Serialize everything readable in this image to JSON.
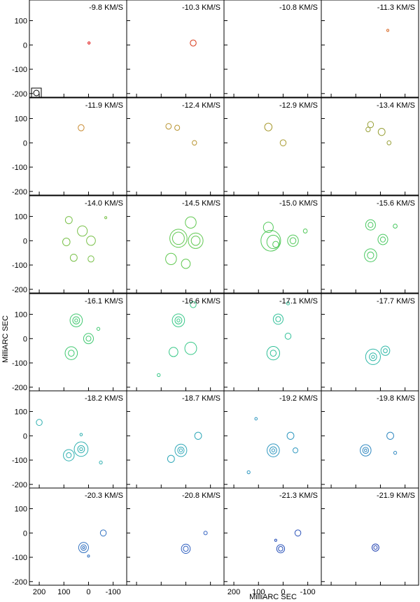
{
  "chart_data": {
    "type": "contour-channel-map",
    "xlabel": "MilliARC SEC",
    "ylabel": "MilliARC SEC",
    "xticks": [
      200,
      100,
      0,
      -100
    ],
    "yticks": [
      100,
      0,
      -100,
      -200
    ],
    "xlim": [
      240,
      -155
    ],
    "ylim": [
      -215,
      185
    ],
    "channels": [
      {
        "label": "-9.8 KM/S",
        "color": "#e01010",
        "features": [
          {
            "x": -2,
            "y": 8,
            "r": 2
          }
        ]
      },
      {
        "label": "-10.3 KM/S",
        "color": "#d83818",
        "features": [
          {
            "x": -30,
            "y": 8,
            "r": 12
          }
        ]
      },
      {
        "label": "-10.8 KM/S",
        "color": "#d85a20",
        "features": []
      },
      {
        "label": "-11.3 KM/S",
        "color": "#d86a28",
        "features": [
          {
            "x": -30,
            "y": 60,
            "r": 4
          }
        ]
      },
      {
        "label": "-11.9 KM/S",
        "color": "#c88a30",
        "features": [
          {
            "x": 30,
            "y": 62,
            "r": 12
          }
        ]
      },
      {
        "label": "-12.4 KM/S",
        "color": "#b89430",
        "features": [
          {
            "x": 70,
            "y": 68,
            "r": 11
          },
          {
            "x": 35,
            "y": 62,
            "r": 10
          },
          {
            "x": -35,
            "y": 0,
            "r": 9
          }
        ]
      },
      {
        "label": "-12.9 KM/S",
        "color": "#a89a30",
        "features": [
          {
            "x": 60,
            "y": 65,
            "r": 15
          },
          {
            "x": 0,
            "y": 0,
            "r": 12
          }
        ]
      },
      {
        "label": "-13.4 KM/S",
        "color": "#98a038",
        "features": [
          {
            "x": 40,
            "y": 75,
            "r": 12
          },
          {
            "x": 50,
            "y": 55,
            "r": 9
          },
          {
            "x": -5,
            "y": 45,
            "r": 14
          },
          {
            "x": -35,
            "y": 0,
            "r": 8
          }
        ]
      },
      {
        "label": "-14.0 KM/S",
        "color": "#78c048",
        "features": [
          {
            "x": 80,
            "y": 85,
            "r": 14
          },
          {
            "x": 25,
            "y": 40,
            "r": 20
          },
          {
            "x": 90,
            "y": -5,
            "r": 15
          },
          {
            "x": -10,
            "y": 0,
            "r": 18
          },
          {
            "x": 60,
            "y": -70,
            "r": 14
          },
          {
            "x": -10,
            "y": -75,
            "r": 12
          },
          {
            "x": -70,
            "y": 95,
            "r": 4
          }
        ]
      },
      {
        "label": "-14.5 KM/S",
        "color": "#60c850",
        "features": [
          {
            "x": 30,
            "y": 10,
            "r": 35
          },
          {
            "x": 30,
            "y": 10,
            "r": 24
          },
          {
            "x": -40,
            "y": 0,
            "r": 30
          },
          {
            "x": -40,
            "y": 0,
            "r": 18
          },
          {
            "x": 60,
            "y": -75,
            "r": 22
          },
          {
            "x": 0,
            "y": -95,
            "r": 18
          },
          {
            "x": -20,
            "y": 75,
            "r": 22
          }
        ]
      },
      {
        "label": "-15.0 KM/S",
        "color": "#50c858",
        "features": [
          {
            "x": 50,
            "y": 0,
            "r": 40
          },
          {
            "x": 40,
            "y": -5,
            "r": 26
          },
          {
            "x": 30,
            "y": -15,
            "r": 12
          },
          {
            "x": -40,
            "y": 0,
            "r": 22
          },
          {
            "x": -40,
            "y": 0,
            "r": 12
          },
          {
            "x": 60,
            "y": 55,
            "r": 20
          },
          {
            "x": -90,
            "y": 40,
            "r": 8
          }
        ]
      },
      {
        "label": "-15.6 KM/S",
        "color": "#48c860",
        "features": [
          {
            "x": 40,
            "y": 65,
            "r": 20
          },
          {
            "x": 40,
            "y": 65,
            "r": 10
          },
          {
            "x": -10,
            "y": 5,
            "r": 20
          },
          {
            "x": -10,
            "y": 5,
            "r": 10
          },
          {
            "x": 40,
            "y": -60,
            "r": 25
          },
          {
            "x": 40,
            "y": -60,
            "r": 13
          },
          {
            "x": -60,
            "y": 60,
            "r": 8
          }
        ]
      },
      {
        "label": "-16.1 KM/S",
        "color": "#40c870",
        "features": [
          {
            "x": 50,
            "y": 75,
            "r": 25
          },
          {
            "x": 50,
            "y": 75,
            "r": 14
          },
          {
            "x": 50,
            "y": 75,
            "r": 6
          },
          {
            "x": 0,
            "y": 0,
            "r": 20
          },
          {
            "x": 0,
            "y": 0,
            "r": 10
          },
          {
            "x": 70,
            "y": -60,
            "r": 25
          },
          {
            "x": 70,
            "y": -60,
            "r": 12
          },
          {
            "x": -40,
            "y": 40,
            "r": 6
          }
        ]
      },
      {
        "label": "-16.6 KM/S",
        "color": "#38c888",
        "features": [
          {
            "x": 30,
            "y": 75,
            "r": 25
          },
          {
            "x": 30,
            "y": 75,
            "r": 14
          },
          {
            "x": 30,
            "y": 75,
            "r": 6
          },
          {
            "x": -30,
            "y": 140,
            "r": 12
          },
          {
            "x": -20,
            "y": -40,
            "r": 24
          },
          {
            "x": 50,
            "y": -55,
            "r": 18
          },
          {
            "x": 110,
            "y": -150,
            "r": 6
          }
        ]
      },
      {
        "label": "-17.1 KM/S",
        "color": "#30c098",
        "features": [
          {
            "x": 20,
            "y": 80,
            "r": 20
          },
          {
            "x": 20,
            "y": 80,
            "r": 10
          },
          {
            "x": 40,
            "y": -60,
            "r": 26
          },
          {
            "x": 40,
            "y": -60,
            "r": 12
          },
          {
            "x": -20,
            "y": 10,
            "r": 12
          },
          {
            "x": -20,
            "y": 145,
            "r": 6
          }
        ]
      },
      {
        "label": "-17.7 KM/S",
        "color": "#30b8a8",
        "features": [
          {
            "x": 30,
            "y": -75,
            "r": 30
          },
          {
            "x": 30,
            "y": -75,
            "r": 15
          },
          {
            "x": 30,
            "y": -75,
            "r": 6
          },
          {
            "x": -20,
            "y": -50,
            "r": 18
          },
          {
            "x": -20,
            "y": -50,
            "r": 8
          }
        ]
      },
      {
        "label": "-18.2 KM/S",
        "color": "#30b0b0",
        "features": [
          {
            "x": 80,
            "y": -80,
            "r": 22
          },
          {
            "x": 80,
            "y": -80,
            "r": 10
          },
          {
            "x": 30,
            "y": -55,
            "r": 28
          },
          {
            "x": 30,
            "y": -55,
            "r": 14
          },
          {
            "x": 30,
            "y": -55,
            "r": 6
          },
          {
            "x": 200,
            "y": 55,
            "r": 12
          },
          {
            "x": 30,
            "y": 5,
            "r": 5
          },
          {
            "x": -50,
            "y": -110,
            "r": 6
          }
        ]
      },
      {
        "label": "-18.7 KM/S",
        "color": "#30a8b8",
        "features": [
          {
            "x": 60,
            "y": -95,
            "r": 14
          },
          {
            "x": 20,
            "y": -60,
            "r": 24
          },
          {
            "x": 20,
            "y": -60,
            "r": 13
          },
          {
            "x": 20,
            "y": -60,
            "r": 6
          },
          {
            "x": -50,
            "y": 0,
            "r": 14
          }
        ]
      },
      {
        "label": "-19.2 KM/S",
        "color": "#3098c0",
        "features": [
          {
            "x": 40,
            "y": -60,
            "r": 25
          },
          {
            "x": 40,
            "y": -60,
            "r": 14
          },
          {
            "x": 40,
            "y": -60,
            "r": 6
          },
          {
            "x": -30,
            "y": 0,
            "r": 14
          },
          {
            "x": -50,
            "y": -60,
            "r": 10
          },
          {
            "x": 110,
            "y": 70,
            "r": 5
          },
          {
            "x": 140,
            "y": -150,
            "r": 6
          }
        ]
      },
      {
        "label": "-19.8 KM/S",
        "color": "#3088c0",
        "features": [
          {
            "x": 60,
            "y": -60,
            "r": 22
          },
          {
            "x": 60,
            "y": -60,
            "r": 12
          },
          {
            "x": 60,
            "y": -60,
            "r": 5
          },
          {
            "x": -40,
            "y": 0,
            "r": 14
          },
          {
            "x": -60,
            "y": -70,
            "r": 6
          }
        ]
      },
      {
        "label": "-20.3 KM/S",
        "color": "#3070c0",
        "features": [
          {
            "x": 20,
            "y": -60,
            "r": 20
          },
          {
            "x": 20,
            "y": -60,
            "r": 11
          },
          {
            "x": 20,
            "y": -60,
            "r": 4
          },
          {
            "x": -60,
            "y": 0,
            "r": 12
          },
          {
            "x": 0,
            "y": -95,
            "r": 4
          }
        ]
      },
      {
        "label": "-20.8 KM/S",
        "color": "#3060c0",
        "features": [
          {
            "x": 0,
            "y": -65,
            "r": 18
          },
          {
            "x": 0,
            "y": -65,
            "r": 10
          },
          {
            "x": -80,
            "y": 0,
            "r": 7
          }
        ]
      },
      {
        "label": "-21.3 KM/S",
        "color": "#2850b8",
        "features": [
          {
            "x": 10,
            "y": -65,
            "r": 16
          },
          {
            "x": 10,
            "y": -65,
            "r": 9
          },
          {
            "x": -60,
            "y": 0,
            "r": 12
          },
          {
            "x": 30,
            "y": -30,
            "r": 4
          }
        ]
      },
      {
        "label": "-21.9 KM/S",
        "color": "#2040b0",
        "features": [
          {
            "x": 20,
            "y": -60,
            "r": 14
          },
          {
            "x": 20,
            "y": -60,
            "r": 7
          }
        ]
      }
    ]
  }
}
